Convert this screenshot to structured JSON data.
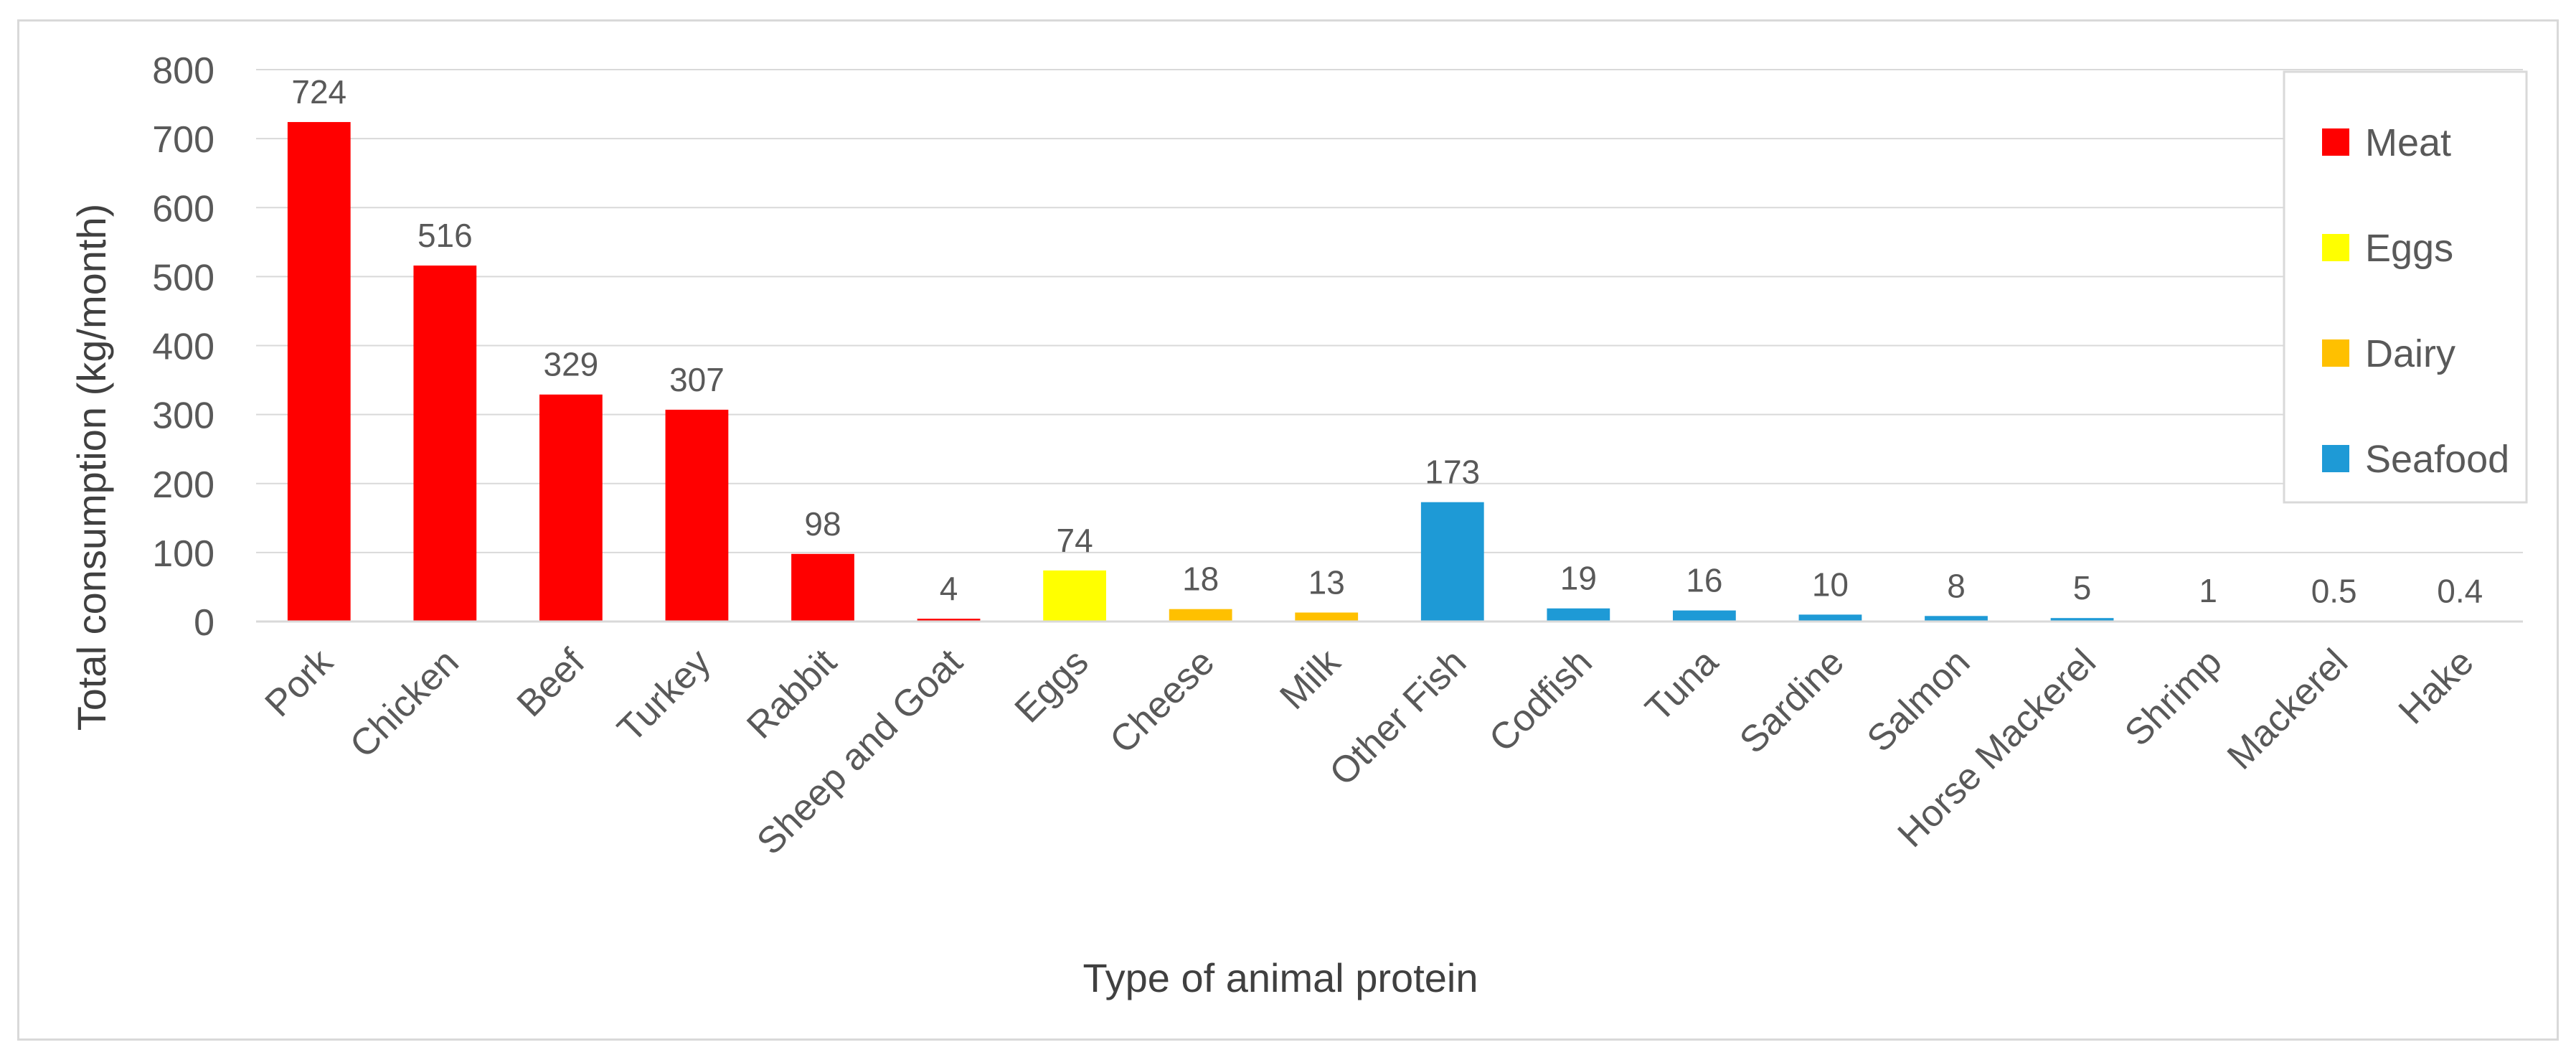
{
  "chart_data": {
    "type": "bar",
    "title": "",
    "xlabel": "Type of animal protein",
    "ylabel": "Total consumption (kg/month)",
    "ylim": [
      0,
      800
    ],
    "yticks": [
      "0",
      "100",
      "200",
      "300",
      "400",
      "500",
      "600",
      "700",
      "800"
    ],
    "grid": true,
    "legend_position": "top-right",
    "categories": [
      "Pork",
      "Chicken",
      "Beef",
      "Turkey",
      "Rabbit",
      "Sheep and Goat",
      "Eggs",
      "Cheese",
      "Milk",
      "Other Fish",
      "Codfish",
      "Tuna",
      "Sardine",
      "Salmon",
      "Horse Mackerel",
      "Shrimp",
      "Mackerel",
      "Hake"
    ],
    "values": [
      724,
      516,
      329,
      307,
      98,
      4,
      74,
      18,
      13,
      173,
      19,
      16,
      10,
      8,
      5,
      1,
      0.5,
      0.4
    ],
    "data_labels": [
      "724",
      "516",
      "329",
      "307",
      "98",
      "4",
      "74",
      "18",
      "13",
      "173",
      "19",
      "16",
      "10",
      "8",
      "5",
      "1",
      "0.5",
      "0.4"
    ],
    "groups": [
      "Meat",
      "Meat",
      "Meat",
      "Meat",
      "Meat",
      "Meat",
      "Eggs",
      "Dairy",
      "Dairy",
      "Seafood",
      "Seafood",
      "Seafood",
      "Seafood",
      "Seafood",
      "Seafood",
      "Seafood",
      "Seafood",
      "Seafood"
    ],
    "legend": [
      {
        "name": "Meat",
        "color": "#ff0000"
      },
      {
        "name": "Eggs",
        "color": "#ffff00"
      },
      {
        "name": "Dairy",
        "color": "#ffc000"
      },
      {
        "name": "Seafood",
        "color": "#1e9ad6"
      }
    ]
  }
}
